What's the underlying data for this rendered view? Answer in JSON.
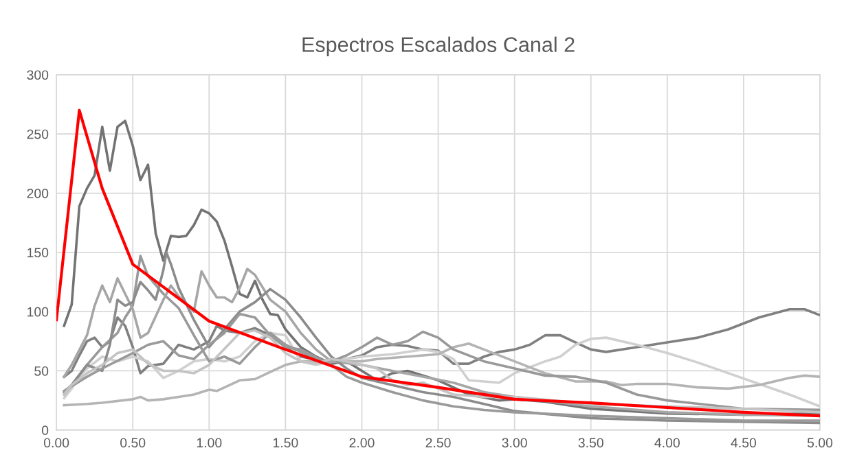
{
  "chart_data": {
    "type": "line",
    "title": "Espectros Escalados Canal 2",
    "xlim": [
      0,
      5
    ],
    "ylim": [
      0,
      300
    ],
    "xticks": [
      {
        "value": 0,
        "label": "0.00"
      },
      {
        "value": 0.5,
        "label": "0.50"
      },
      {
        "value": 1,
        "label": "1.00"
      },
      {
        "value": 1.5,
        "label": "1.50"
      },
      {
        "value": 2,
        "label": "2.00"
      },
      {
        "value": 2.5,
        "label": "2.50"
      },
      {
        "value": 3,
        "label": "3.00"
      },
      {
        "value": 3.5,
        "label": "3.50"
      },
      {
        "value": 4,
        "label": "4.00"
      },
      {
        "value": 4.5,
        "label": "4.50"
      },
      {
        "value": 5,
        "label": "5.00"
      }
    ],
    "yticks": [
      0,
      50,
      100,
      150,
      200,
      250,
      300
    ],
    "grid": true,
    "legend": false,
    "marker": "none",
    "line_style": "solid",
    "series": [
      {
        "color": "#737373",
        "x": [
          0.05,
          0.1,
          0.15,
          0.2,
          0.25,
          0.3,
          0.35,
          0.4,
          0.45,
          0.5,
          0.55,
          0.6,
          0.65,
          0.7,
          0.75,
          0.8,
          0.85,
          0.9,
          0.95,
          1.0,
          1.05,
          1.1,
          1.15,
          1.2,
          1.25,
          1.3,
          1.35,
          1.4,
          1.45,
          1.5,
          1.6,
          1.7,
          1.8,
          1.9,
          2.0,
          2.1,
          2.2,
          2.3,
          2.5,
          2.7,
          2.9,
          3.0,
          3.2,
          3.5,
          4.0,
          4.5,
          5.0
        ],
        "values": [
          88,
          106,
          189,
          204,
          215,
          256,
          219,
          256,
          261,
          240,
          211,
          224,
          166,
          143,
          164,
          163,
          164,
          173,
          186,
          183,
          176,
          160,
          138,
          115,
          112,
          126,
          110,
          98,
          97,
          85,
          70,
          62,
          56,
          58,
          50,
          42,
          48,
          50,
          42,
          30,
          25,
          26,
          24,
          18,
          14,
          13,
          14
        ]
      },
      {
        "color": "#808080",
        "x": [
          0.05,
          0.1,
          0.15,
          0.2,
          0.25,
          0.3,
          0.35,
          0.4,
          0.45,
          0.5,
          0.55,
          0.6,
          0.7,
          0.8,
          0.9,
          1.0,
          1.05,
          1.1,
          1.2,
          1.3,
          1.4,
          1.5,
          1.6,
          1.8,
          2.0,
          2.1,
          2.2,
          2.3,
          2.4,
          2.5,
          2.6,
          2.7,
          2.8,
          2.9,
          3.0,
          3.1,
          3.2,
          3.3,
          3.4,
          3.5,
          3.6,
          3.8,
          4.0,
          4.2,
          4.4,
          4.6,
          4.8,
          4.9,
          5.0
        ],
        "values": [
          45,
          50,
          63,
          75,
          78,
          70,
          75,
          95,
          88,
          70,
          48,
          54,
          56,
          72,
          68,
          75,
          88,
          84,
          82,
          86,
          80,
          70,
          62,
          57,
          63,
          70,
          72,
          71,
          68,
          67,
          56,
          56,
          62,
          66,
          68,
          72,
          80,
          80,
          74,
          68,
          66,
          70,
          74,
          78,
          85,
          95,
          102,
          102,
          97
        ]
      },
      {
        "color": "#d0d0d0",
        "x": [
          0.05,
          0.1,
          0.15,
          0.2,
          0.3,
          0.4,
          0.5,
          0.6,
          0.7,
          0.8,
          0.9,
          1.0,
          1.1,
          1.2,
          1.3,
          1.4,
          1.5,
          1.6,
          1.7,
          1.8,
          2.0,
          2.2,
          2.4,
          2.5,
          2.6,
          2.7,
          2.8,
          2.9,
          3.0,
          3.2,
          3.3,
          3.4,
          3.5,
          3.6,
          3.8,
          4.0,
          4.2,
          4.4,
          4.6,
          4.8,
          5.0
        ],
        "values": [
          27,
          35,
          45,
          52,
          62,
          58,
          62,
          58,
          44,
          50,
          58,
          60,
          58,
          62,
          75,
          82,
          80,
          58,
          55,
          58,
          62,
          64,
          68,
          66,
          60,
          42,
          41,
          40,
          48,
          58,
          62,
          72,
          77,
          78,
          72,
          65,
          57,
          48,
          39,
          30,
          20
        ]
      },
      {
        "color": "#b4b4b4",
        "x": [
          0.05,
          0.2,
          0.3,
          0.5,
          0.55,
          0.6,
          0.7,
          0.8,
          0.9,
          1.0,
          1.05,
          1.2,
          1.3,
          1.4,
          1.5,
          1.6,
          1.7,
          1.8,
          2.0,
          2.1,
          2.3,
          2.5,
          2.6,
          2.7,
          2.8,
          3.0,
          3.2,
          3.4,
          3.6,
          3.7,
          3.8,
          4.0,
          4.2,
          4.4,
          4.6,
          4.8,
          4.9,
          5.0
        ],
        "values": [
          21,
          22,
          23,
          26,
          28,
          25,
          26,
          28,
          30,
          34,
          33,
          42,
          43,
          49,
          55,
          58,
          58,
          58,
          58,
          60,
          62,
          64,
          70,
          73,
          68,
          58,
          48,
          41,
          41,
          38,
          39,
          39,
          36,
          35,
          38,
          44,
          46,
          45
        ]
      },
      {
        "color": "#999999",
        "x": [
          0.05,
          0.1,
          0.2,
          0.3,
          0.4,
          0.45,
          0.5,
          0.55,
          0.6,
          0.7,
          0.8,
          0.9,
          1.0,
          1.1,
          1.2,
          1.3,
          1.4,
          1.5,
          1.7,
          1.8,
          1.9,
          2.0,
          2.1,
          2.2,
          2.3,
          2.4,
          2.5,
          2.6,
          2.8,
          3.0,
          3.2,
          3.4,
          3.6,
          3.8,
          4.0,
          4.5,
          5.0
        ],
        "values": [
          32,
          38,
          55,
          70,
          82,
          95,
          105,
          147,
          130,
          115,
          103,
          80,
          58,
          62,
          56,
          70,
          82,
          72,
          60,
          58,
          63,
          70,
          78,
          72,
          75,
          83,
          78,
          68,
          58,
          52,
          46,
          45,
          40,
          30,
          25,
          18,
          17
        ]
      },
      {
        "color": "#a6a6a6",
        "x": [
          0.05,
          0.1,
          0.2,
          0.25,
          0.3,
          0.35,
          0.4,
          0.45,
          0.5,
          0.55,
          0.6,
          0.7,
          0.75,
          0.8,
          0.9,
          0.95,
          1.0,
          1.05,
          1.1,
          1.15,
          1.2,
          1.25,
          1.3,
          1.4,
          1.5,
          1.6,
          1.7,
          1.8,
          2.0,
          2.2,
          2.4,
          2.6,
          2.8,
          3.0,
          3.5,
          4.0,
          4.5,
          5.0
        ],
        "values": [
          45,
          55,
          80,
          105,
          122,
          108,
          128,
          115,
          102,
          78,
          82,
          110,
          122,
          113,
          100,
          134,
          122,
          112,
          112,
          108,
          120,
          136,
          131,
          110,
          100,
          82,
          68,
          58,
          55,
          50,
          45,
          40,
          32,
          28,
          20,
          15,
          13,
          12
        ]
      },
      {
        "color": "#8c8c8c",
        "x": [
          0.05,
          0.1,
          0.2,
          0.3,
          0.35,
          0.4,
          0.45,
          0.5,
          0.55,
          0.6,
          0.65,
          0.7,
          0.72,
          0.75,
          0.8,
          0.9,
          1.0,
          1.1,
          1.2,
          1.3,
          1.4,
          1.5,
          1.6,
          1.7,
          1.8,
          1.9,
          2.0,
          2.2,
          2.4,
          2.6,
          2.8,
          3.0,
          3.5,
          4.0,
          4.5,
          5.0
        ],
        "values": [
          30,
          38,
          55,
          50,
          72,
          110,
          105,
          108,
          125,
          118,
          110,
          135,
          150,
          140,
          120,
          93,
          70,
          85,
          100,
          108,
          119,
          110,
          95,
          78,
          62,
          52,
          44,
          38,
          32,
          28,
          22,
          16,
          10,
          8,
          7,
          6
        ]
      },
      {
        "color": "#9a9a9a",
        "x": [
          0.05,
          0.2,
          0.3,
          0.5,
          0.6,
          0.7,
          0.8,
          0.9,
          1.0,
          1.1,
          1.2,
          1.3,
          1.4,
          1.5,
          1.6,
          1.8,
          1.9,
          2.0,
          2.2,
          2.4,
          2.6,
          2.8,
          3.0,
          3.5,
          4.0,
          4.5,
          5.0
        ],
        "values": [
          33,
          45,
          52,
          65,
          72,
          75,
          63,
          60,
          72,
          82,
          98,
          95,
          80,
          70,
          68,
          55,
          45,
          40,
          32,
          25,
          20,
          17,
          15,
          12,
          10,
          8,
          8
        ]
      },
      {
        "color": "#c4c4c4",
        "x": [
          0.05,
          0.1,
          0.2,
          0.3,
          0.4,
          0.5,
          0.6,
          0.7,
          0.8,
          0.9,
          1.0,
          1.2,
          1.3,
          1.4,
          1.5,
          1.6,
          1.7,
          1.8,
          1.9,
          2.0,
          2.1,
          2.2,
          2.3,
          2.4,
          2.6,
          2.8,
          3.0,
          3.5,
          4.0,
          4.5,
          5.0
        ],
        "values": [
          30,
          38,
          48,
          55,
          65,
          68,
          56,
          50,
          50,
          48,
          55,
          82,
          84,
          78,
          65,
          58,
          56,
          60,
          58,
          55,
          52,
          42,
          38,
          40,
          30,
          28,
          28,
          22,
          20,
          18,
          15
        ]
      },
      {
        "color": "#ff0000",
        "x": [
          0,
          0.15,
          0.3,
          0.5,
          1.0,
          1.5,
          2.0,
          2.5,
          3.0,
          3.5,
          4.0,
          4.5,
          5.0
        ],
        "values": [
          93,
          270,
          204,
          140,
          92,
          68,
          45,
          36,
          26,
          23,
          19,
          15,
          12
        ]
      }
    ]
  }
}
